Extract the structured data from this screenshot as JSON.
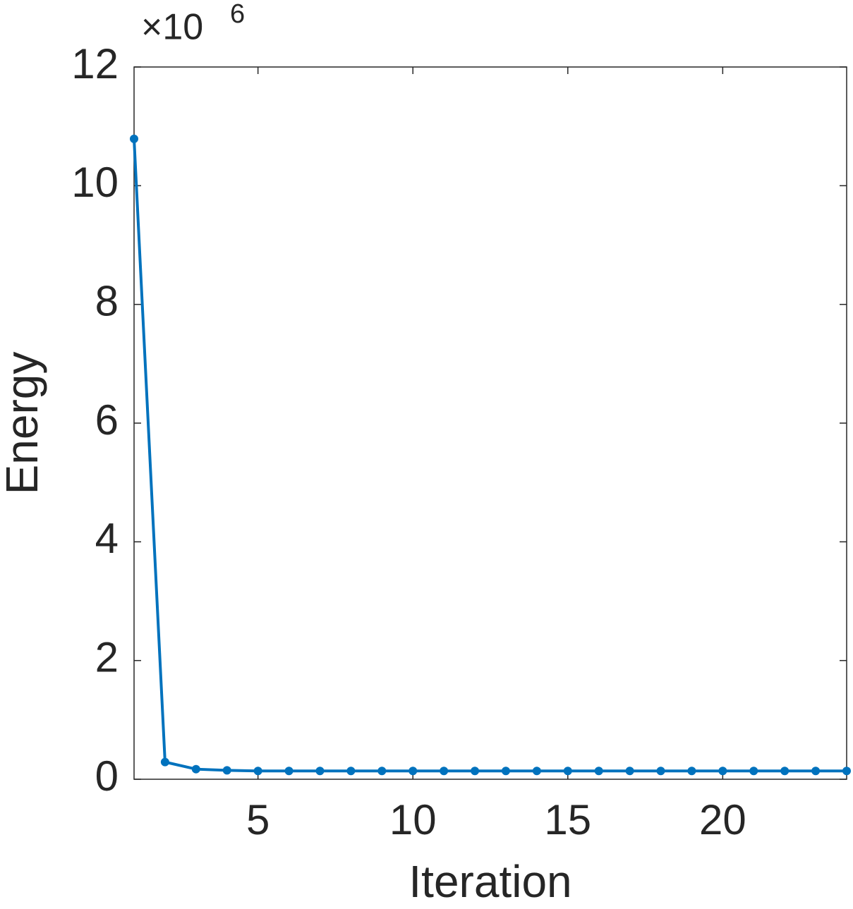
{
  "chart_data": {
    "type": "line",
    "x_label": "Iteration",
    "y_label": "Energy",
    "y_multiplier": "×10",
    "y_exponent": "6",
    "x": [
      1,
      2,
      3,
      4,
      5,
      6,
      7,
      8,
      9,
      10,
      11,
      12,
      13,
      14,
      15,
      16,
      17,
      18,
      19,
      20,
      21,
      22,
      23,
      24
    ],
    "series": [
      {
        "color": "#0072bd",
        "values": [
          10.79,
          0.29,
          0.17,
          0.15,
          0.14,
          0.14,
          0.14,
          0.14,
          0.14,
          0.14,
          0.14,
          0.14,
          0.14,
          0.14,
          0.14,
          0.14,
          0.14,
          0.14,
          0.14,
          0.14,
          0.14,
          0.14,
          0.14,
          0.14
        ]
      }
    ],
    "xlim": [
      1,
      24
    ],
    "xticks": [
      5,
      10,
      15,
      20
    ],
    "ylim": [
      0,
      12
    ],
    "yticks": [
      0,
      2,
      4,
      6,
      8,
      10,
      12
    ],
    "grid": false,
    "box": true
  }
}
